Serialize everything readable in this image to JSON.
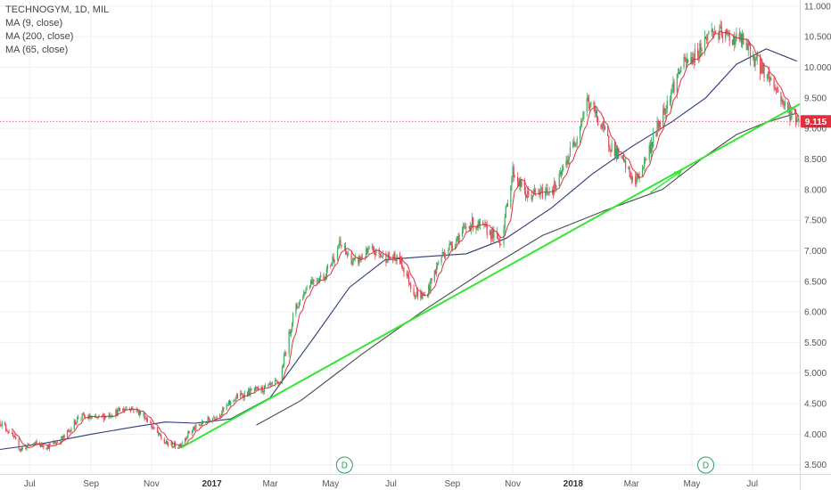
{
  "legend": {
    "title": "TECHNOGYM, 1D, MIL",
    "indicators": [
      "MA (9, close)",
      "MA (200, close)",
      "MA (65, close)"
    ]
  },
  "colors": {
    "up": "#3fae5f",
    "down": "#e04a5a",
    "ma9": "#e0303f",
    "ma65": "#2f3a7a",
    "ma200": "#4a4a4a",
    "trend": "#33e833",
    "price_line": "#e0303f",
    "dividend": "#2e9c5a"
  },
  "chart_data": {
    "type": "candlestick",
    "y_axis": {
      "range": [
        3.35,
        11.1
      ],
      "ticks": [
        "3.500",
        "4.000",
        "4.500",
        "5.000",
        "5.500",
        "6.000",
        "6.500",
        "7.000",
        "7.500",
        "8.000",
        "8.500",
        "9.000",
        "9.500",
        "10.000",
        "10.500",
        "11.000"
      ]
    },
    "x_axis": {
      "range": [
        "2016-06-01",
        "2018-08-18"
      ],
      "labels": [
        {
          "label": "Jul",
          "date": "2016-07-01",
          "bold": false
        },
        {
          "label": "Sep",
          "date": "2016-09-01",
          "bold": false
        },
        {
          "label": "Nov",
          "date": "2016-11-01",
          "bold": false
        },
        {
          "label": "2017",
          "date": "2017-01-01",
          "bold": true
        },
        {
          "label": "Mar",
          "date": "2017-03-01",
          "bold": false
        },
        {
          "label": "May",
          "date": "2017-05-01",
          "bold": false
        },
        {
          "label": "Jul",
          "date": "2017-07-01",
          "bold": false
        },
        {
          "label": "Sep",
          "date": "2017-09-01",
          "bold": false
        },
        {
          "label": "Nov",
          "date": "2017-11-01",
          "bold": false
        },
        {
          "label": "2018",
          "date": "2018-01-01",
          "bold": true
        },
        {
          "label": "Mar",
          "date": "2018-03-01",
          "bold": false
        },
        {
          "label": "May",
          "date": "2018-05-01",
          "bold": false
        },
        {
          "label": "Jul",
          "date": "2018-07-01",
          "bold": false
        }
      ]
    },
    "last_price": {
      "label": "9.115",
      "value": 9.115
    },
    "price_path": [
      [
        "2016-06-01",
        4.2
      ],
      [
        "2016-06-10",
        4.05
      ],
      [
        "2016-06-22",
        3.75
      ],
      [
        "2016-07-05",
        3.85
      ],
      [
        "2016-07-20",
        3.8
      ],
      [
        "2016-08-05",
        3.95
      ],
      [
        "2016-08-20",
        4.3
      ],
      [
        "2016-09-05",
        4.25
      ],
      [
        "2016-09-25",
        4.35
      ],
      [
        "2016-10-10",
        4.45
      ],
      [
        "2016-10-25",
        4.3
      ],
      [
        "2016-11-05",
        4.05
      ],
      [
        "2016-11-15",
        3.85
      ],
      [
        "2016-11-28",
        3.8
      ],
      [
        "2016-12-10",
        4.05
      ],
      [
        "2016-12-25",
        4.2
      ],
      [
        "2017-01-10",
        4.35
      ],
      [
        "2017-01-25",
        4.6
      ],
      [
        "2017-02-10",
        4.7
      ],
      [
        "2017-02-25",
        4.75
      ],
      [
        "2017-03-10",
        4.85
      ],
      [
        "2017-03-25",
        6.0
      ],
      [
        "2017-04-10",
        6.5
      ],
      [
        "2017-04-25",
        6.6
      ],
      [
        "2017-05-10",
        7.1
      ],
      [
        "2017-05-25",
        6.8
      ],
      [
        "2017-06-10",
        7.0
      ],
      [
        "2017-06-25",
        6.9
      ],
      [
        "2017-07-10",
        6.85
      ],
      [
        "2017-07-25",
        6.3
      ],
      [
        "2017-08-05",
        6.25
      ],
      [
        "2017-08-20",
        6.9
      ],
      [
        "2017-09-05",
        7.2
      ],
      [
        "2017-09-20",
        7.45
      ],
      [
        "2017-10-05",
        7.35
      ],
      [
        "2017-10-20",
        7.15
      ],
      [
        "2017-11-01",
        8.3
      ],
      [
        "2017-11-15",
        7.9
      ],
      [
        "2017-12-01",
        7.95
      ],
      [
        "2017-12-15",
        8.05
      ],
      [
        "2018-01-05",
        8.9
      ],
      [
        "2018-01-15",
        9.45
      ],
      [
        "2018-01-25",
        9.2
      ],
      [
        "2018-02-05",
        8.8
      ],
      [
        "2018-02-20",
        8.45
      ],
      [
        "2018-03-05",
        8.1
      ],
      [
        "2018-03-20",
        8.7
      ],
      [
        "2018-04-05",
        9.4
      ],
      [
        "2018-04-20",
        10.0
      ],
      [
        "2018-05-05",
        10.2
      ],
      [
        "2018-05-20",
        10.6
      ],
      [
        "2018-06-05",
        10.5
      ],
      [
        "2018-06-20",
        10.45
      ],
      [
        "2018-07-05",
        10.1
      ],
      [
        "2018-07-20",
        9.8
      ],
      [
        "2018-08-05",
        9.3
      ],
      [
        "2018-08-18",
        9.115
      ]
    ],
    "series": [
      {
        "name": "MA (9, close)",
        "color": "#e0303f",
        "values": []
      },
      {
        "name": "MA (65, close)",
        "color": "#2f3a7a",
        "points": [
          [
            "2016-06-01",
            3.75
          ],
          [
            "2016-07-15",
            3.85
          ],
          [
            "2016-09-01",
            4.0
          ],
          [
            "2016-10-15",
            4.12
          ],
          [
            "2016-11-15",
            4.2
          ],
          [
            "2016-12-15",
            4.18
          ],
          [
            "2017-01-20",
            4.25
          ],
          [
            "2017-03-01",
            4.6
          ],
          [
            "2017-04-15",
            5.6
          ],
          [
            "2017-05-20",
            6.4
          ],
          [
            "2017-06-25",
            6.85
          ],
          [
            "2017-08-01",
            6.9
          ],
          [
            "2017-09-15",
            6.95
          ],
          [
            "2017-10-25",
            7.2
          ],
          [
            "2017-12-10",
            7.7
          ],
          [
            "2018-01-20",
            8.25
          ],
          [
            "2018-03-01",
            8.7
          ],
          [
            "2018-04-10",
            9.1
          ],
          [
            "2018-05-15",
            9.5
          ],
          [
            "2018-06-15",
            10.05
          ],
          [
            "2018-07-15",
            10.3
          ],
          [
            "2018-08-15",
            10.1
          ]
        ]
      },
      {
        "name": "MA (200, close)",
        "color": "#4a4a4a",
        "points": [
          [
            "2017-02-15",
            4.15
          ],
          [
            "2017-04-01",
            4.55
          ],
          [
            "2017-06-01",
            5.3
          ],
          [
            "2017-08-01",
            6.0
          ],
          [
            "2017-10-01",
            6.65
          ],
          [
            "2017-12-01",
            7.25
          ],
          [
            "2018-02-01",
            7.65
          ],
          [
            "2018-04-01",
            8.0
          ],
          [
            "2018-05-15",
            8.55
          ],
          [
            "2018-06-15",
            8.9
          ],
          [
            "2018-07-15",
            9.1
          ],
          [
            "2018-08-15",
            9.25
          ]
        ]
      }
    ],
    "trend_line": {
      "from": [
        "2016-12-01",
        3.78
      ],
      "to": [
        "2018-08-18",
        9.4
      ],
      "color": "#33e833"
    },
    "arrow_annotation": {
      "from": [
        "2018-03-20",
        7.95
      ],
      "to": [
        "2018-04-20",
        8.3
      ]
    },
    "dividend_markers": [
      {
        "label": "D",
        "date": "2017-05-15"
      },
      {
        "label": "D",
        "date": "2018-05-15"
      }
    ]
  }
}
